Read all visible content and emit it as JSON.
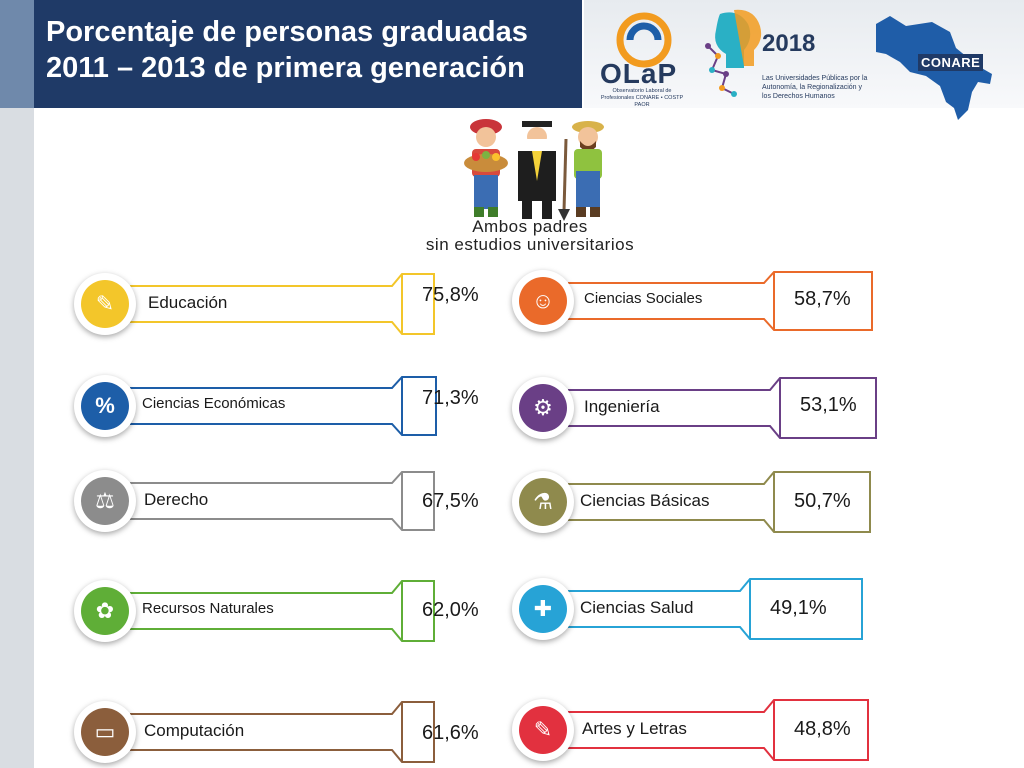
{
  "header": {
    "title_line1": "Porcentaje de personas graduadas",
    "title_line2": "2011 – 2013 de primera generación"
  },
  "logos": {
    "olap_name": "OLaP",
    "olap_subtitle": "Observatorio Laboral de Profesionales CONARE • COSTP PAOR",
    "year": "2018",
    "tagline": "Las Universidades Públicas por la Autonomía, la Regionalización y los Derechos Humanos",
    "conare": "CONARE"
  },
  "illustration": {
    "line1": "Ambos padres",
    "line2": "sin estudios universitarios"
  },
  "areas_left": [
    {
      "label": "Educación",
      "value": "75,8%",
      "color": "#f3c62a",
      "icon": "education-icon"
    },
    {
      "label": "Ciencias Económicas",
      "value": "71,3%",
      "color": "#1d5ea8",
      "icon": "economics-icon"
    },
    {
      "label": "Derecho",
      "value": "67,5%",
      "color": "#8c8c8c",
      "icon": "law-icon"
    },
    {
      "label": "Recursos Naturales",
      "value": "62,0%",
      "color": "#5fae37",
      "icon": "nature-icon"
    },
    {
      "label": "Computación",
      "value": "61,6%",
      "color": "#8b5e3c",
      "icon": "computer-icon"
    }
  ],
  "areas_right": [
    {
      "label": "Ciencias Sociales",
      "value": "58,7%",
      "color": "#ea6a2a",
      "icon": "social-icon"
    },
    {
      "label": "Ingeniería",
      "value": "53,1%",
      "color": "#6a3f86",
      "icon": "engineering-icon"
    },
    {
      "label": "Ciencias Básicas",
      "value": "50,7%",
      "color": "#8f8a4d",
      "icon": "science-icon"
    },
    {
      "label": "Ciencias Salud",
      "value": "49,1%",
      "color": "#27a3d6",
      "icon": "health-icon"
    },
    {
      "label": "Artes y Letras",
      "value": "48,8%",
      "color": "#e2313f",
      "icon": "arts-icon"
    }
  ]
}
